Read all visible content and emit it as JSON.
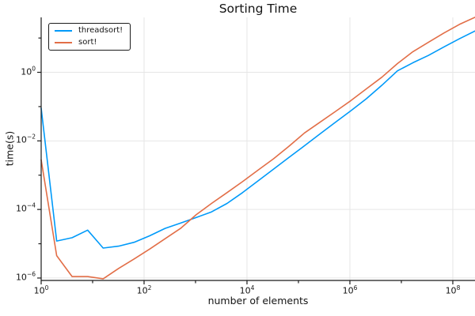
{
  "chart_data": {
    "type": "line",
    "title": "Sorting Time",
    "xlabel": "number of elements",
    "ylabel": "time(s)",
    "x_scale": "log10",
    "y_scale": "log10",
    "xlim": [
      1,
      270000000
    ],
    "ylim": [
      8.5e-07,
      40
    ],
    "grid": true,
    "legend_position": "top-left-inside",
    "x_ticks": {
      "all_exponents": [
        0,
        1,
        2,
        3,
        4,
        5,
        6,
        7,
        8
      ],
      "labeled_exponents": [
        0,
        2,
        4,
        6,
        8
      ]
    },
    "y_ticks": {
      "all_exponents": [
        1,
        0,
        -1,
        -2,
        -3,
        -4,
        -5,
        -6
      ],
      "labeled_exponents": [
        0,
        -2,
        -4,
        -6
      ]
    },
    "style": {
      "background": "#ffffff",
      "grid_color": "#e6e6e6",
      "axis_color": "#1b1b1b",
      "title_color": "#141414",
      "line_width": 1.6
    },
    "series": [
      {
        "name": "threadsort!",
        "color": "#009af9",
        "x": [
          1,
          2,
          4,
          8,
          16,
          32,
          64,
          128,
          256,
          512,
          1024,
          2048,
          4096,
          8192,
          16384,
          32768,
          65536,
          131072,
          262144,
          524288,
          1048576,
          2097152,
          4194304,
          8388608,
          16777216,
          33554432,
          67108864,
          134217728,
          268435456
        ],
        "y": [
          0.09,
          1.2e-05,
          1.5e-05,
          2.5e-05,
          7.5e-06,
          8.5e-06,
          1.1e-05,
          1.7e-05,
          2.8e-05,
          4e-05,
          5.8e-05,
          8.5e-05,
          0.00015,
          0.00031,
          0.00068,
          0.0015,
          0.0033,
          0.0072,
          0.016,
          0.035,
          0.076,
          0.17,
          0.42,
          1.1,
          1.9,
          3.1,
          5.5,
          9.5,
          16
        ]
      },
      {
        "name": "sort!",
        "color": "#e26e47",
        "x": [
          1,
          2,
          4,
          8,
          16,
          32,
          64,
          128,
          256,
          512,
          1024,
          2048,
          4096,
          8192,
          16384,
          32768,
          65536,
          131072,
          262144,
          524288,
          1048576,
          2097152,
          4194304,
          8388608,
          16777216,
          33554432,
          67108864,
          134217728,
          268435456
        ],
        "y": [
          0.0028,
          4.5e-06,
          1.1e-06,
          1.1e-06,
          9.5e-07,
          1.9e-06,
          3.6e-06,
          7e-06,
          1.4e-05,
          2.8e-05,
          7e-05,
          0.00015,
          0.00031,
          0.00065,
          0.0014,
          0.003,
          0.007,
          0.017,
          0.035,
          0.072,
          0.15,
          0.33,
          0.72,
          1.8,
          4.0,
          7.5,
          14,
          25,
          40
        ]
      }
    ]
  }
}
